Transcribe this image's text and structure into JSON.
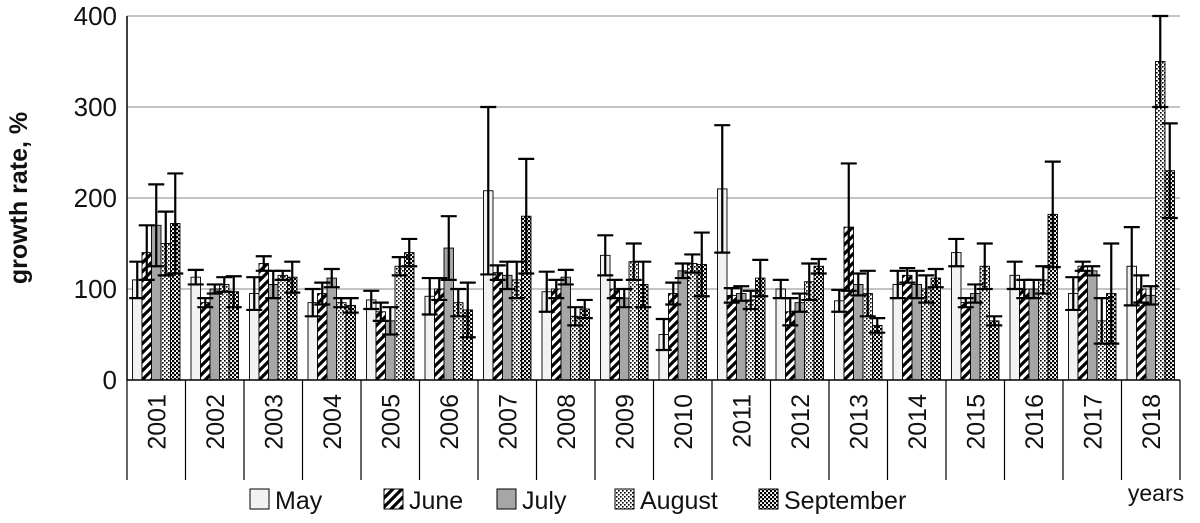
{
  "chart_data": {
    "type": "bar",
    "title": "",
    "xlabel": "years",
    "ylabel": "growth rate, %",
    "ylim": [
      0,
      400
    ],
    "yticks": [
      "0",
      "100",
      "200",
      "300",
      "400"
    ],
    "grid": true,
    "legend_position": "bottom",
    "error_bars": true,
    "categories": [
      "2001",
      "2002",
      "2003",
      "2004",
      "2005",
      "2006",
      "2007",
      "2008",
      "2009",
      "2010",
      "2011",
      "2012",
      "2013",
      "2014",
      "2015",
      "2016",
      "2017",
      "2018"
    ],
    "series": [
      {
        "name": "May",
        "pattern": "white",
        "values": [
          110,
          113,
          95,
          85,
          88,
          92,
          208,
          97,
          137,
          50,
          210,
          100,
          87,
          105,
          140,
          115,
          95,
          125
        ],
        "errors": [
          20,
          8,
          18,
          15,
          10,
          20,
          92,
          22,
          22,
          17,
          70,
          10,
          12,
          15,
          15,
          15,
          18,
          43
        ]
      },
      {
        "name": "June",
        "pattern": "diagonal-stripes",
        "values": [
          140,
          85,
          128,
          95,
          75,
          100,
          118,
          100,
          100,
          95,
          93,
          75,
          168,
          115,
          85,
          100,
          125,
          100
        ],
        "errors": [
          30,
          5,
          8,
          12,
          10,
          12,
          8,
          10,
          10,
          12,
          8,
          15,
          70,
          8,
          5,
          10,
          5,
          15
        ]
      },
      {
        "name": "July",
        "pattern": "gray",
        "values": [
          170,
          100,
          105,
          112,
          65,
          145,
          115,
          113,
          90,
          120,
          95,
          85,
          105,
          105,
          95,
          100,
          120,
          93
        ],
        "errors": [
          45,
          5,
          15,
          10,
          15,
          35,
          15,
          8,
          10,
          8,
          8,
          10,
          12,
          15,
          10,
          10,
          5,
          10
        ]
      },
      {
        "name": "August",
        "pattern": "dots",
        "values": [
          150,
          105,
          115,
          85,
          125,
          85,
          110,
          70,
          130,
          128,
          88,
          108,
          95,
          100,
          125,
          110,
          65,
          350
        ],
        "errors": [
          35,
          8,
          5,
          5,
          10,
          15,
          20,
          10,
          20,
          10,
          10,
          20,
          25,
          15,
          25,
          15,
          25,
          50
        ]
      },
      {
        "name": "September",
        "pattern": "checker",
        "values": [
          172,
          97,
          113,
          82,
          140,
          77,
          180,
          78,
          105,
          127,
          112,
          125,
          60,
          112,
          65,
          182,
          95,
          230
        ],
        "errors": [
          55,
          17,
          17,
          8,
          15,
          30,
          63,
          10,
          25,
          35,
          20,
          8,
          8,
          10,
          5,
          58,
          55,
          52
        ]
      }
    ]
  }
}
